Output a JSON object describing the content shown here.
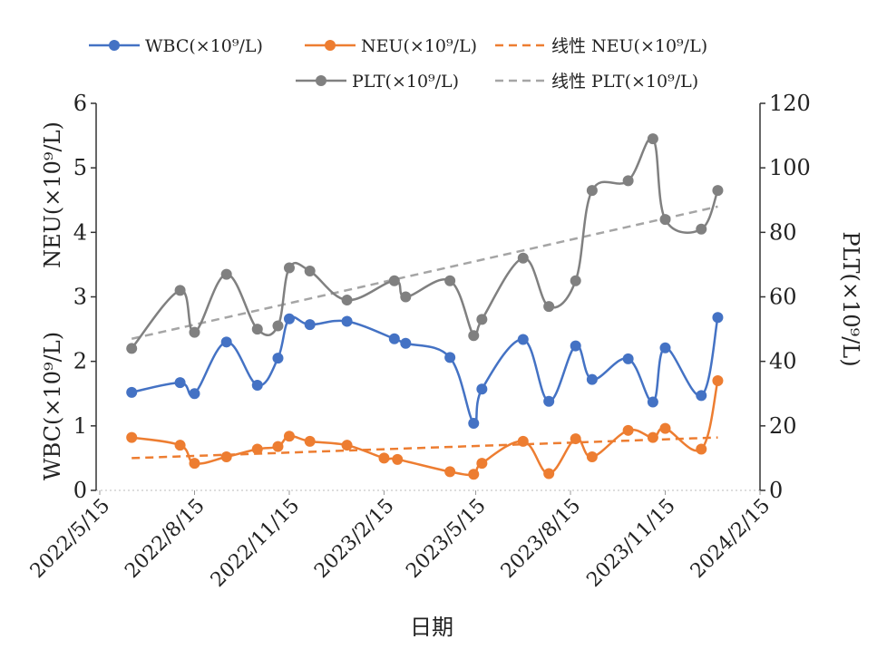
{
  "chart_data": {
    "type": "line",
    "xlabel": "日期",
    "left_axis": {
      "label_top": "NEU(×10⁹/L)",
      "label_bottom": "WBC(×10⁹/L)",
      "ylim": [
        0,
        6
      ],
      "ticks": [
        0,
        1,
        2,
        3,
        4,
        5,
        6
      ]
    },
    "right_axis": {
      "label": "PLT(×10⁹/L)",
      "ylim": [
        0,
        120
      ],
      "ticks": [
        0,
        20,
        40,
        60,
        80,
        100,
        120
      ]
    },
    "x_ticks": [
      "2022/5/15",
      "2022/8/15",
      "2022/11/15",
      "2023/2/15",
      "2023/5/15",
      "2023/8/15",
      "2023/11/15",
      "2024/2/15"
    ],
    "x_ticks_iso": [
      "2022-05-15",
      "2022-08-15",
      "2022-11-15",
      "2023-02-15",
      "2023-05-15",
      "2023-08-15",
      "2023-11-15",
      "2024-02-15"
    ],
    "legend": [
      {
        "key": "wbc",
        "label": "WBC(×10⁹/L)",
        "style": "line-marker",
        "color": "#4472C4"
      },
      {
        "key": "neu",
        "label": "NEU(×10⁹/L)",
        "style": "line-marker",
        "color": "#ED7D31"
      },
      {
        "key": "neu_trend",
        "label": "线性 NEU(×10⁹/L)",
        "style": "dashed",
        "color": "#ED7D31"
      },
      {
        "key": "plt",
        "label": "PLT(×10⁹/L)",
        "style": "line-marker",
        "color": "#808080"
      },
      {
        "key": "plt_trend",
        "label": "线性 PLT(×10⁹/L)",
        "style": "dashed",
        "color": "#A5A5A5"
      }
    ],
    "series": [
      {
        "key": "wbc",
        "name": "WBC(×10⁹/L)",
        "axis": "left",
        "color": "#4472C4",
        "points": [
          {
            "x": "2022-06-15",
            "y": 1.52
          },
          {
            "x": "2022-08-01",
            "y": 1.67
          },
          {
            "x": "2022-08-15",
            "y": 1.5
          },
          {
            "x": "2022-09-15",
            "y": 2.3
          },
          {
            "x": "2022-10-15",
            "y": 1.63
          },
          {
            "x": "2022-11-04",
            "y": 2.05
          },
          {
            "x": "2022-11-15",
            "y": 2.66
          },
          {
            "x": "2022-12-05",
            "y": 2.57
          },
          {
            "x": "2023-01-10",
            "y": 2.62
          },
          {
            "x": "2023-02-25",
            "y": 2.35
          },
          {
            "x": "2023-03-08",
            "y": 2.28
          },
          {
            "x": "2023-04-20",
            "y": 2.06
          },
          {
            "x": "2023-05-13",
            "y": 1.04
          },
          {
            "x": "2023-05-21",
            "y": 1.57
          },
          {
            "x": "2023-06-30",
            "y": 2.34
          },
          {
            "x": "2023-07-25",
            "y": 1.38
          },
          {
            "x": "2023-08-20",
            "y": 2.24
          },
          {
            "x": "2023-09-05",
            "y": 1.72
          },
          {
            "x": "2023-10-10",
            "y": 2.04
          },
          {
            "x": "2023-11-03",
            "y": 1.37
          },
          {
            "x": "2023-11-15",
            "y": 2.21
          },
          {
            "x": "2023-12-20",
            "y": 1.47
          },
          {
            "x": "2024-01-05",
            "y": 2.68
          }
        ]
      },
      {
        "key": "neu",
        "name": "NEU(×10⁹/L)",
        "axis": "left",
        "color": "#ED7D31",
        "points": [
          {
            "x": "2022-06-15",
            "y": 0.82
          },
          {
            "x": "2022-08-01",
            "y": 0.7
          },
          {
            "x": "2022-08-15",
            "y": 0.42
          },
          {
            "x": "2022-09-15",
            "y": 0.52
          },
          {
            "x": "2022-10-15",
            "y": 0.64
          },
          {
            "x": "2022-11-04",
            "y": 0.68
          },
          {
            "x": "2022-11-15",
            "y": 0.84
          },
          {
            "x": "2022-12-05",
            "y": 0.76
          },
          {
            "x": "2023-01-10",
            "y": 0.7
          },
          {
            "x": "2023-02-15",
            "y": 0.5
          },
          {
            "x": "2023-02-28",
            "y": 0.48
          },
          {
            "x": "2023-04-20",
            "y": 0.29
          },
          {
            "x": "2023-05-13",
            "y": 0.25
          },
          {
            "x": "2023-05-21",
            "y": 0.42
          },
          {
            "x": "2023-06-30",
            "y": 0.76
          },
          {
            "x": "2023-07-25",
            "y": 0.26
          },
          {
            "x": "2023-08-20",
            "y": 0.8
          },
          {
            "x": "2023-09-05",
            "y": 0.52
          },
          {
            "x": "2023-10-10",
            "y": 0.93
          },
          {
            "x": "2023-11-03",
            "y": 0.82
          },
          {
            "x": "2023-11-15",
            "y": 0.96
          },
          {
            "x": "2023-12-20",
            "y": 0.64
          },
          {
            "x": "2024-01-05",
            "y": 1.7
          }
        ]
      },
      {
        "key": "plt",
        "name": "PLT(×10⁹/L)",
        "axis": "right",
        "color": "#808080",
        "points": [
          {
            "x": "2022-06-15",
            "y": 44
          },
          {
            "x": "2022-08-01",
            "y": 62
          },
          {
            "x": "2022-08-15",
            "y": 49
          },
          {
            "x": "2022-09-15",
            "y": 67
          },
          {
            "x": "2022-10-15",
            "y": 50
          },
          {
            "x": "2022-11-04",
            "y": 51
          },
          {
            "x": "2022-11-15",
            "y": 69
          },
          {
            "x": "2022-12-05",
            "y": 68
          },
          {
            "x": "2023-01-10",
            "y": 59
          },
          {
            "x": "2023-02-25",
            "y": 65
          },
          {
            "x": "2023-03-08",
            "y": 60
          },
          {
            "x": "2023-04-20",
            "y": 65
          },
          {
            "x": "2023-05-13",
            "y": 48
          },
          {
            "x": "2023-05-21",
            "y": 53
          },
          {
            "x": "2023-06-30",
            "y": 72
          },
          {
            "x": "2023-07-25",
            "y": 57
          },
          {
            "x": "2023-08-20",
            "y": 65
          },
          {
            "x": "2023-09-05",
            "y": 93
          },
          {
            "x": "2023-10-10",
            "y": 96
          },
          {
            "x": "2023-11-03",
            "y": 109
          },
          {
            "x": "2023-11-15",
            "y": 84
          },
          {
            "x": "2023-12-20",
            "y": 81
          },
          {
            "x": "2024-01-05",
            "y": 93
          }
        ]
      }
    ],
    "trendlines": [
      {
        "key": "neu_trend",
        "of": "neu",
        "axis": "left",
        "color": "#ED7D31",
        "from": {
          "x": "2022-06-15",
          "y": 0.5
        },
        "to": {
          "x": "2024-01-05",
          "y": 0.82
        }
      },
      {
        "key": "plt_trend",
        "of": "plt",
        "axis": "right",
        "color": "#A5A5A5",
        "from": {
          "x": "2022-06-15",
          "y": 47
        },
        "to": {
          "x": "2024-01-05",
          "y": 88
        }
      }
    ]
  }
}
